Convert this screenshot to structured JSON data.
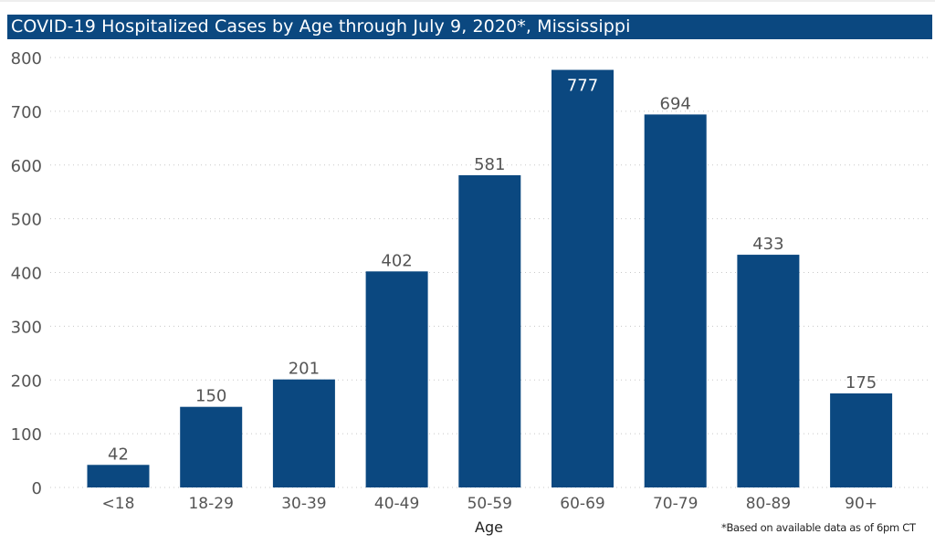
{
  "chart_data": {
    "type": "bar",
    "title": "COVID-19 Hospitalized Cases by Age through July 9, 2020*, Mississippi",
    "xlabel": "Age",
    "ylabel": "",
    "categories": [
      "<18",
      "18-29",
      "30-39",
      "40-49",
      "50-59",
      "60-69",
      "70-79",
      "80-89",
      "90+"
    ],
    "values": [
      42,
      150,
      201,
      402,
      581,
      777,
      694,
      433,
      175
    ],
    "ylim": [
      0,
      800
    ],
    "yticks": [
      0,
      100,
      200,
      300,
      400,
      500,
      600,
      700,
      800
    ],
    "grid": true,
    "legend": "none",
    "bar_color": "#0b4880",
    "footnote": "*Based on available data as of 6pm CT"
  }
}
